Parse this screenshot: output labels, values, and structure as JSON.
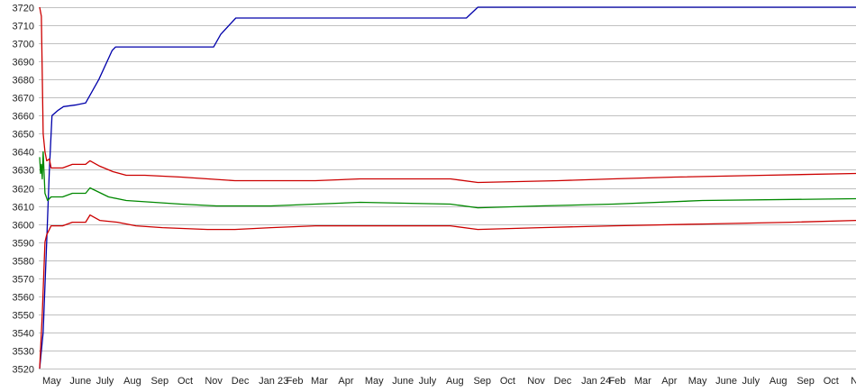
{
  "chart_data": {
    "type": "line",
    "title": "",
    "xlabel": "",
    "ylabel": "",
    "ylim": [
      3520,
      3720
    ],
    "xlim": [
      "2022-04-28",
      "2024-11-08"
    ],
    "yticks": [
      3520,
      3530,
      3540,
      3550,
      3560,
      3570,
      3580,
      3590,
      3600,
      3610,
      3620,
      3630,
      3640,
      3650,
      3660,
      3670,
      3680,
      3690,
      3700,
      3710,
      3720
    ],
    "grid": true,
    "legend": "none",
    "xticks": [
      {
        "date": "2022-05-01",
        "label": "May"
      },
      {
        "date": "2022-06-01",
        "label": "June"
      },
      {
        "date": "2022-07-01",
        "label": "July"
      },
      {
        "date": "2022-08-01",
        "label": "Aug"
      },
      {
        "date": "2022-09-01",
        "label": "Sep"
      },
      {
        "date": "2022-10-01",
        "label": "Oct"
      },
      {
        "date": "2022-11-01",
        "label": "Nov"
      },
      {
        "date": "2022-12-01",
        "label": "Dec"
      },
      {
        "date": "2023-01-01",
        "label": "Jan 23"
      },
      {
        "date": "2023-02-01",
        "label": "Feb"
      },
      {
        "date": "2023-03-01",
        "label": "Mar"
      },
      {
        "date": "2023-04-01",
        "label": "Apr"
      },
      {
        "date": "2023-05-01",
        "label": "May"
      },
      {
        "date": "2023-06-01",
        "label": "June"
      },
      {
        "date": "2023-07-01",
        "label": "July"
      },
      {
        "date": "2023-08-01",
        "label": "Aug"
      },
      {
        "date": "2023-09-01",
        "label": "Sep"
      },
      {
        "date": "2023-10-01",
        "label": "Oct"
      },
      {
        "date": "2023-11-01",
        "label": "Nov"
      },
      {
        "date": "2023-12-01",
        "label": "Dec"
      },
      {
        "date": "2024-01-01",
        "label": "Jan 24"
      },
      {
        "date": "2024-02-01",
        "label": "Feb"
      },
      {
        "date": "2024-03-01",
        "label": "Mar"
      },
      {
        "date": "2024-04-01",
        "label": "Apr"
      },
      {
        "date": "2024-05-01",
        "label": "May"
      },
      {
        "date": "2024-06-01",
        "label": "June"
      },
      {
        "date": "2024-07-01",
        "label": "July"
      },
      {
        "date": "2024-08-01",
        "label": "Aug"
      },
      {
        "date": "2024-09-01",
        "label": "Sep"
      },
      {
        "date": "2024-10-01",
        "label": "Oct"
      },
      {
        "date": "2024-11-01",
        "label": "Nov"
      }
    ],
    "series": [
      {
        "color": "#0000aa",
        "points": [
          [
            "2022-04-29",
            3520
          ],
          [
            "2022-05-03",
            3540
          ],
          [
            "2022-05-07",
            3590
          ],
          [
            "2022-05-10",
            3630
          ],
          [
            "2022-05-13",
            3660
          ],
          [
            "2022-05-20",
            3663
          ],
          [
            "2022-05-26",
            3665
          ],
          [
            "2022-06-10",
            3666
          ],
          [
            "2022-06-20",
            3667
          ],
          [
            "2022-07-05",
            3680
          ],
          [
            "2022-07-20",
            3696
          ],
          [
            "2022-07-24",
            3698
          ],
          [
            "2022-11-12",
            3698
          ],
          [
            "2022-11-20",
            3705
          ],
          [
            "2022-12-07",
            3714
          ],
          [
            "2023-08-25",
            3714
          ],
          [
            "2023-09-07",
            3720
          ],
          [
            "2024-11-08",
            3720
          ]
        ]
      },
      {
        "color": "#cc0000",
        "points": [
          [
            "2022-04-29",
            3720
          ],
          [
            "2022-05-01",
            3715
          ],
          [
            "2022-05-03",
            3650
          ],
          [
            "2022-05-05",
            3640
          ],
          [
            "2022-05-07",
            3635
          ],
          [
            "2022-05-10",
            3636
          ],
          [
            "2022-05-12",
            3631
          ],
          [
            "2022-05-25",
            3631
          ],
          [
            "2022-06-05",
            3633
          ],
          [
            "2022-06-20",
            3633
          ],
          [
            "2022-06-25",
            3635
          ],
          [
            "2022-07-06",
            3632
          ],
          [
            "2022-07-21",
            3629
          ],
          [
            "2022-08-05",
            3627
          ],
          [
            "2022-08-26",
            3627
          ],
          [
            "2022-10-06",
            3626
          ],
          [
            "2022-12-06",
            3624
          ],
          [
            "2023-03-07",
            3624
          ],
          [
            "2023-04-27",
            3625
          ],
          [
            "2023-08-07",
            3625
          ],
          [
            "2023-09-07",
            3623
          ],
          [
            "2023-12-07",
            3624
          ],
          [
            "2024-02-07",
            3625
          ],
          [
            "2024-04-17",
            3626
          ],
          [
            "2024-07-28",
            3627
          ],
          [
            "2024-11-08",
            3628
          ]
        ]
      },
      {
        "color": "#008800",
        "points": [
          [
            "2022-04-29",
            3637
          ],
          [
            "2022-04-30",
            3628
          ],
          [
            "2022-05-01",
            3633
          ],
          [
            "2022-05-02",
            3625
          ],
          [
            "2022-05-03",
            3640
          ],
          [
            "2022-05-05",
            3617
          ],
          [
            "2022-05-08",
            3613
          ],
          [
            "2022-05-12",
            3615
          ],
          [
            "2022-05-25",
            3615
          ],
          [
            "2022-06-05",
            3617
          ],
          [
            "2022-06-20",
            3617
          ],
          [
            "2022-06-25",
            3620
          ],
          [
            "2022-07-16",
            3615
          ],
          [
            "2022-08-05",
            3613
          ],
          [
            "2022-10-06",
            3611
          ],
          [
            "2022-11-15",
            3610
          ],
          [
            "2023-01-16",
            3610
          ],
          [
            "2023-03-07",
            3611
          ],
          [
            "2023-04-27",
            3612
          ],
          [
            "2023-08-07",
            3611
          ],
          [
            "2023-09-07",
            3609
          ],
          [
            "2023-11-17",
            3610
          ],
          [
            "2024-02-07",
            3611
          ],
          [
            "2024-05-18",
            3613
          ],
          [
            "2024-11-08",
            3614
          ]
        ]
      },
      {
        "color": "#cc0000",
        "points": [
          [
            "2022-04-29",
            3520
          ],
          [
            "2022-05-02",
            3550
          ],
          [
            "2022-05-05",
            3590
          ],
          [
            "2022-05-07",
            3594
          ],
          [
            "2022-05-09",
            3596
          ],
          [
            "2022-05-12",
            3599
          ],
          [
            "2022-05-25",
            3599
          ],
          [
            "2022-06-05",
            3601
          ],
          [
            "2022-06-20",
            3601
          ],
          [
            "2022-06-25",
            3605
          ],
          [
            "2022-07-06",
            3602
          ],
          [
            "2022-07-26",
            3601
          ],
          [
            "2022-08-16",
            3599
          ],
          [
            "2022-09-15",
            3598
          ],
          [
            "2022-11-05",
            3597
          ],
          [
            "2022-12-06",
            3597
          ],
          [
            "2023-01-16",
            3598
          ],
          [
            "2023-03-07",
            3599
          ],
          [
            "2023-08-07",
            3599
          ],
          [
            "2023-09-07",
            3597
          ],
          [
            "2023-11-17",
            3598
          ],
          [
            "2024-02-07",
            3599
          ],
          [
            "2024-05-18",
            3600
          ],
          [
            "2024-08-27",
            3601
          ],
          [
            "2024-11-08",
            3602
          ]
        ]
      }
    ]
  }
}
